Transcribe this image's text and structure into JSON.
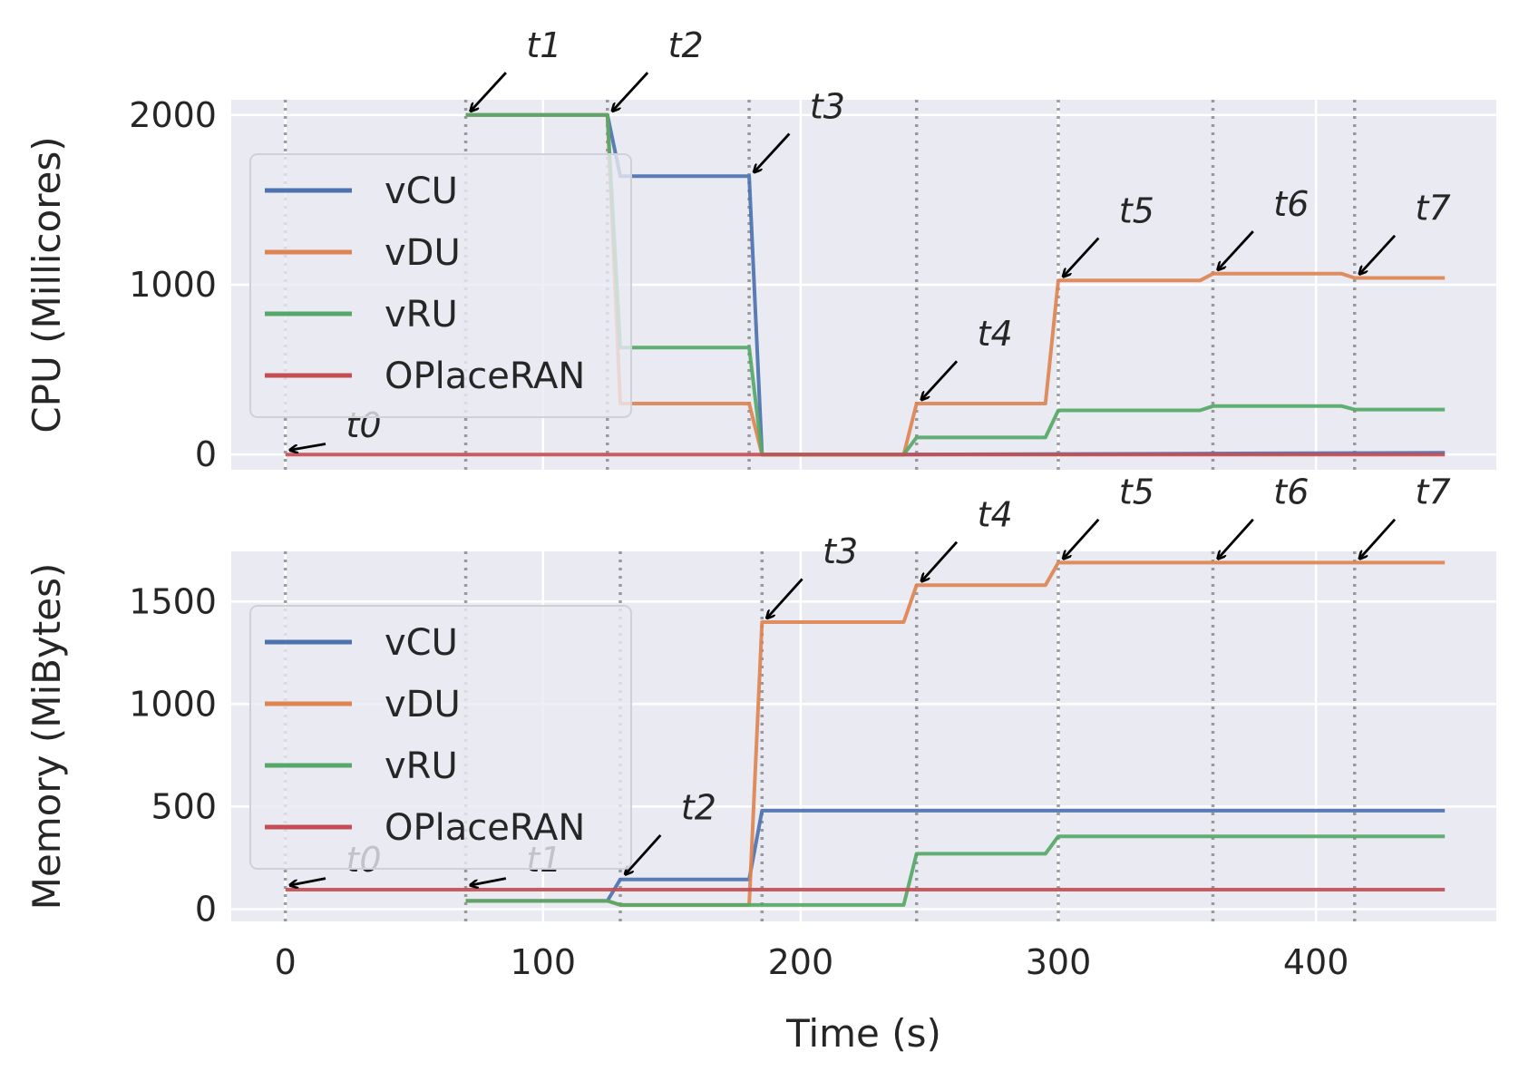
{
  "chart_data": [
    {
      "type": "line",
      "ylabel": "CPU (Millicores)",
      "xlabel": "",
      "xlim": [
        -21,
        470
      ],
      "ylim": [
        -90,
        2090
      ],
      "yticks": [
        0,
        1000,
        2000
      ],
      "xticks": [
        0,
        100,
        200,
        300,
        400
      ],
      "grid": true,
      "legend_position": "center-left",
      "vlines": [
        0,
        70,
        125,
        180,
        245,
        300,
        360,
        415
      ],
      "series": [
        {
          "name": "vCU",
          "color": "#4c72b0",
          "x": [
            70,
            125,
            130,
            180,
            185,
            240,
            450
          ],
          "y": [
            2000,
            2000,
            1640,
            1640,
            0,
            0,
            10
          ]
        },
        {
          "name": "vDU",
          "color": "#dd8452",
          "x": [
            70,
            125,
            130,
            180,
            185,
            240,
            245,
            295,
            300,
            355,
            360,
            410,
            415,
            450
          ],
          "y": [
            2000,
            2000,
            300,
            300,
            0,
            0,
            300,
            300,
            1025,
            1025,
            1065,
            1065,
            1040,
            1040
          ]
        },
        {
          "name": "vRU",
          "color": "#55a868",
          "x": [
            70,
            125,
            130,
            180,
            185,
            240,
            245,
            295,
            300,
            355,
            360,
            410,
            415,
            450
          ],
          "y": [
            2000,
            2000,
            630,
            630,
            0,
            0,
            100,
            100,
            260,
            260,
            285,
            285,
            265,
            265
          ]
        },
        {
          "name": "OPlaceRAN",
          "color": "#c44e52",
          "x": [
            0,
            450
          ],
          "y": [
            0,
            0
          ]
        }
      ],
      "annotations": [
        {
          "label": "t0",
          "x": 0,
          "y": 0,
          "dx": 20,
          "dy": 80
        },
        {
          "label": "t1",
          "x": 70,
          "y": 2000,
          "dx": 20,
          "dy": 320
        },
        {
          "label": "t2",
          "x": 125,
          "y": 2000,
          "dx": 20,
          "dy": 320
        },
        {
          "label": "t3",
          "x": 180,
          "y": 1640,
          "dx": 20,
          "dy": 320
        },
        {
          "label": "t4",
          "x": 245,
          "y": 300,
          "dx": 20,
          "dy": 320
        },
        {
          "label": "t5",
          "x": 300,
          "y": 1025,
          "dx": 20,
          "dy": 320
        },
        {
          "label": "t6",
          "x": 360,
          "y": 1065,
          "dx": 20,
          "dy": 320
        },
        {
          "label": "t7",
          "x": 415,
          "y": 1040,
          "dx": 20,
          "dy": 320
        }
      ]
    },
    {
      "type": "line",
      "ylabel": "Memory (MiBytes)",
      "xlabel": "Time (s)",
      "xlim": [
        -21,
        470
      ],
      "ylim": [
        -60,
        1745
      ],
      "yticks": [
        0,
        500,
        1000,
        1500
      ],
      "xticks": [
        0,
        100,
        200,
        300,
        400
      ],
      "xticklabels": [
        "0",
        "100",
        "200",
        "300",
        "400"
      ],
      "grid": true,
      "legend_position": "center-left",
      "vlines": [
        0,
        70,
        130,
        185,
        245,
        300,
        360,
        415
      ],
      "series": [
        {
          "name": "vCU",
          "color": "#4c72b0",
          "x": [
            70,
            125,
            130,
            180,
            185,
            450
          ],
          "y": [
            40,
            40,
            145,
            145,
            480,
            480
          ]
        },
        {
          "name": "vDU",
          "color": "#dd8452",
          "x": [
            70,
            125,
            130,
            180,
            185,
            240,
            245,
            295,
            300,
            450
          ],
          "y": [
            40,
            40,
            20,
            20,
            1400,
            1400,
            1580,
            1580,
            1690,
            1690
          ]
        },
        {
          "name": "vRU",
          "color": "#55a868",
          "x": [
            70,
            125,
            130,
            240,
            245,
            295,
            300,
            450
          ],
          "y": [
            40,
            40,
            20,
            20,
            270,
            270,
            355,
            355
          ]
        },
        {
          "name": "OPlaceRAN",
          "color": "#c44e52",
          "x": [
            0,
            450
          ],
          "y": [
            95,
            95
          ]
        }
      ],
      "annotations": [
        {
          "label": "t0",
          "x": 0,
          "y": 95,
          "dx": 20,
          "dy": 70
        },
        {
          "label": "t1",
          "x": 70,
          "y": 95,
          "dx": 20,
          "dy": 70
        },
        {
          "label": "t2",
          "x": 130,
          "y": 150,
          "dx": 20,
          "dy": 270
        },
        {
          "label": "t3",
          "x": 185,
          "y": 1400,
          "dx": 20,
          "dy": 270
        },
        {
          "label": "t4",
          "x": 245,
          "y": 1580,
          "dx": 20,
          "dy": 270
        },
        {
          "label": "t5",
          "x": 300,
          "y": 1690,
          "dx": 20,
          "dy": 270
        },
        {
          "label": "t6",
          "x": 360,
          "y": 1690,
          "dx": 20,
          "dy": 270
        },
        {
          "label": "t7",
          "x": 415,
          "y": 1690,
          "dx": 20,
          "dy": 270
        }
      ]
    }
  ]
}
